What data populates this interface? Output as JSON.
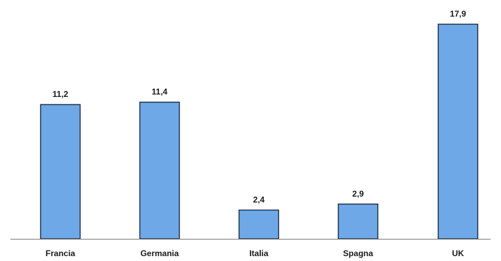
{
  "chart_data": {
    "type": "bar",
    "categories": [
      "Francia",
      "Germania",
      "Italia",
      "Spagna",
      "UK"
    ],
    "values": [
      11.2,
      11.4,
      2.4,
      2.9,
      17.9
    ],
    "value_labels": [
      "11,2",
      "11,4",
      "2,4",
      "2,9",
      "17,9"
    ],
    "title": "",
    "xlabel": "",
    "ylabel": "",
    "ylim": [
      0,
      17.9
    ],
    "grid": false,
    "legend": "none",
    "colors": {
      "bar_fill": "#6fa8e6",
      "bar_stroke": "#1c2a44",
      "axis": "#7a7a7a",
      "text": "#1a1a1a"
    }
  }
}
